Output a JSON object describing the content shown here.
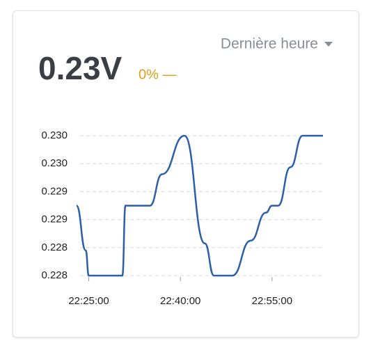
{
  "header": {
    "value": "0.23V",
    "change": "0% —",
    "range_selector": "Dernière heure"
  },
  "chart_data": {
    "type": "line",
    "x": [
      "22:23:00",
      "22:24:30",
      "22:25:00",
      "22:30:30",
      "22:31:00",
      "22:35:00",
      "22:37:00",
      "22:40:40",
      "22:44:00",
      "22:45:30",
      "22:48:30",
      "22:51:30",
      "22:54:00",
      "22:55:00",
      "22:56:00",
      "22:58:00",
      "23:00:00",
      "23:03:20"
    ],
    "series": [
      {
        "color": "#2c5fa8",
        "values": [
          0.229,
          0.22836,
          0.228,
          0.228,
          0.229,
          0.229,
          0.22945,
          0.23,
          0.22846,
          0.228,
          0.228,
          0.2285,
          0.2289,
          0.229,
          0.229,
          0.22955,
          0.23,
          0.23
        ]
      }
    ],
    "xlim": [
      "22:23:00",
      "23:03:20"
    ],
    "xticks": [
      "22:25:00",
      "22:40:00",
      "22:55:00"
    ],
    "ylim": [
      0.228,
      0.23
    ],
    "yticks": [
      0.228,
      {
        "value": 0.2284,
        "label": "0.228"
      },
      {
        "value": 0.2288,
        "label": "0.229"
      },
      {
        "value": 0.2292,
        "label": "0.229"
      },
      {
        "value": 0.2296,
        "label": "0.230"
      },
      {
        "value": 0.23,
        "label": "0.230"
      }
    ],
    "grid": true
  }
}
